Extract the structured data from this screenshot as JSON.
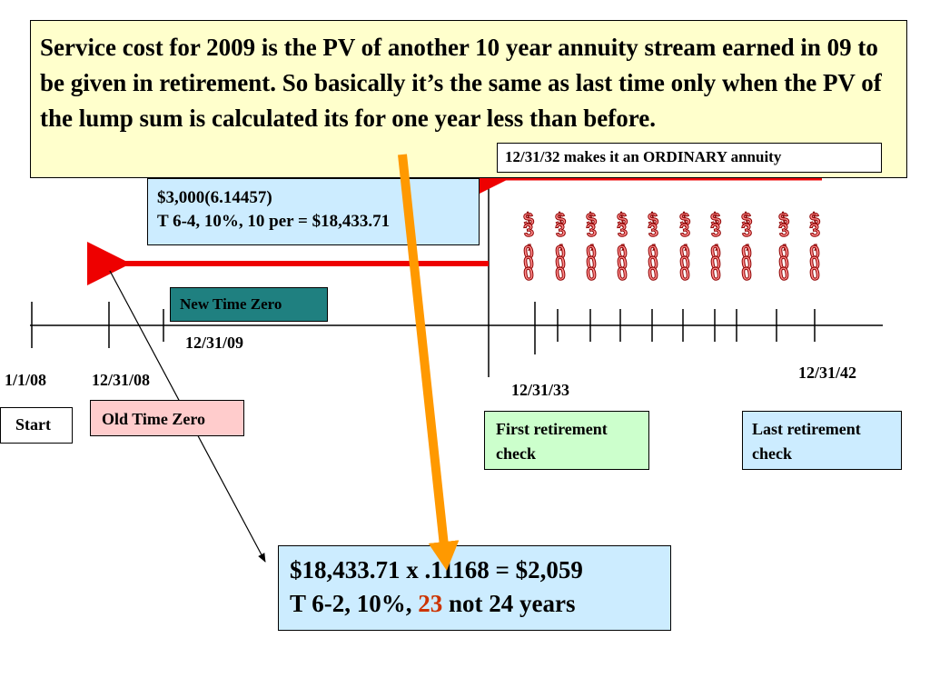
{
  "title_text": "Service cost for 2009 is the PV of another 10 year annuity stream earned in 09 to be given in retirement.  So basically it’s the same as last time only when the PV of the lump sum is calculated its for one year less than before.",
  "ordinary_note": "12/31/32 makes it an ORDINARY annuity",
  "annuity_calc": {
    "line1": "$3,000(6.14457)",
    "line2": "T 6-4, 10%, 10 per = $18,433.71"
  },
  "new_time_zero": "New Time Zero",
  "old_time_zero": "Old Time Zero",
  "start": "Start",
  "dates": {
    "d_1_1_08": "1/1/08",
    "d_12_31_08": "12/31/08",
    "d_12_31_09": "12/31/09",
    "d_12_31_33": "12/31/33",
    "d_12_31_42": "12/31/42"
  },
  "first_check": "First retirement check",
  "last_check": "Last retirement check",
  "result": {
    "line1": "$18,433.71 x .11168 = $2,059",
    "line2_a": "T 6-2, 10%, ",
    "line2_b": "23",
    "line2_c": " not 24 years"
  },
  "payments": {
    "count": 10,
    "amount_glyphs": [
      "$",
      "3",
      ",",
      "0",
      "0",
      "0"
    ]
  },
  "colors": {
    "title_bg": "#ffffcc",
    "annuity_bg": "#ccecff",
    "new_time_zero_bg": "#1f8080",
    "old_time_zero_bg": "#ffcccc",
    "first_check_bg": "#ccffcc",
    "arrow_red": "#ee0000",
    "arrow_orange": "#ff9900"
  }
}
